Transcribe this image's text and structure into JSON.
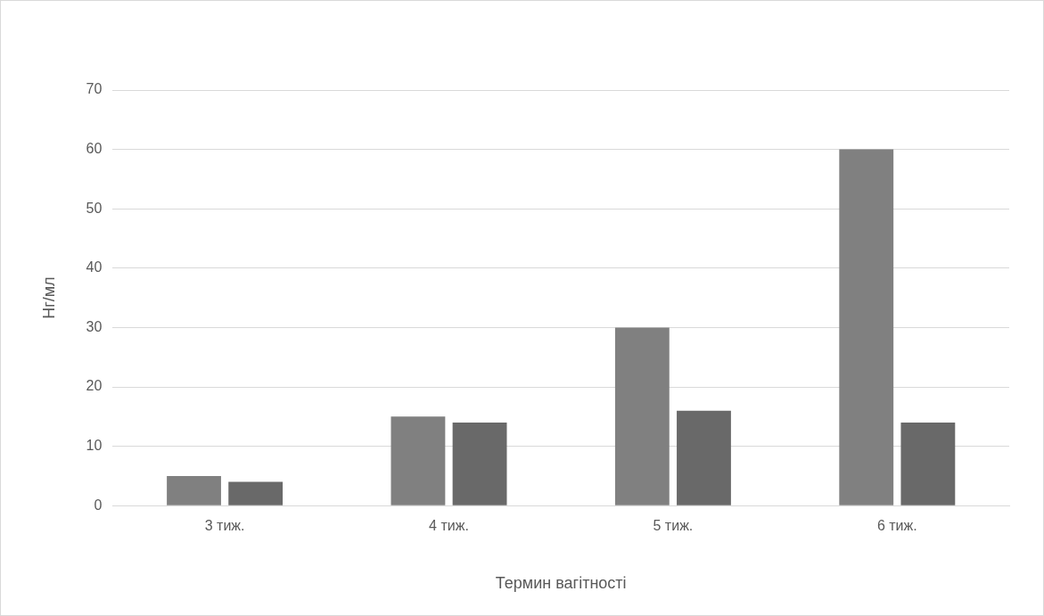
{
  "chart_data": {
    "type": "bar",
    "xlabel": "Термин вагітності",
    "ylabel": "Нг/мл",
    "categories": [
      "3 тиж.",
      "4 тиж.",
      "5 тиж.",
      "6 тиж."
    ],
    "series": [
      {
        "color": "#808080",
        "values": [
          5,
          15,
          30,
          60
        ]
      },
      {
        "color": "#696969",
        "values": [
          4,
          14,
          16,
          14
        ]
      }
    ],
    "ylim": [
      0,
      70
    ],
    "yticks": [
      0,
      10,
      20,
      30,
      40,
      50,
      60,
      70
    ],
    "grid": "y",
    "legend": false
  }
}
